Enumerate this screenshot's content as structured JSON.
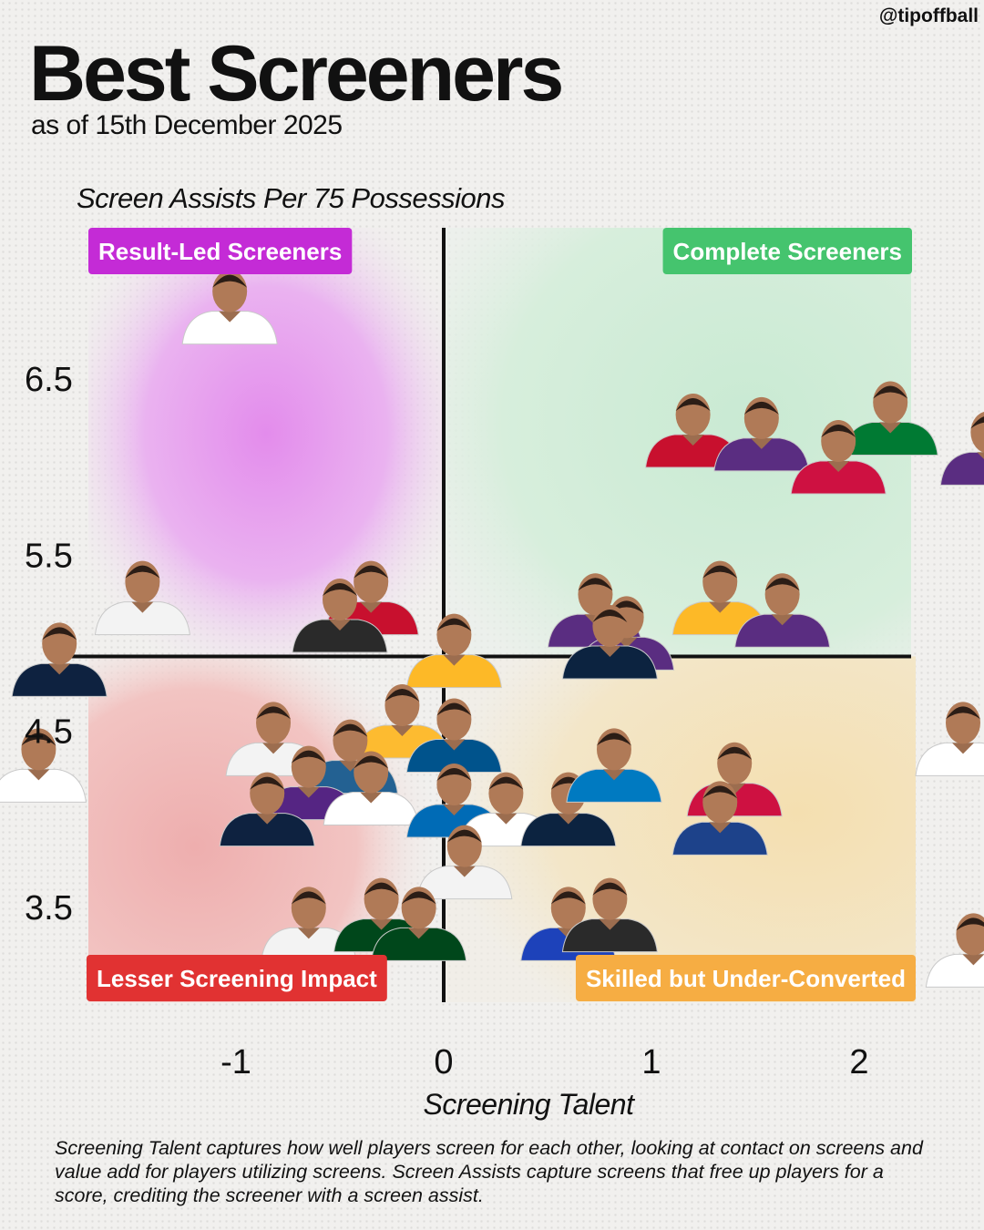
{
  "handle": "@tipoffball",
  "chart_data": {
    "type": "scatter",
    "title": "Best Screeners",
    "subtitle": "as of 15th December 2025",
    "xlabel": "Screening Talent",
    "ylabel": "Screen Assists Per 75 Possessions",
    "xlim": [
      -2.05,
      2.65
    ],
    "ylim": [
      3.0,
      7.6
    ],
    "x_origin": 0,
    "y_origin": 4.92,
    "x_ticks": [
      {
        "value": -1,
        "label": "-1"
      },
      {
        "value": 0,
        "label": "0"
      },
      {
        "value": 1,
        "label": "1"
      },
      {
        "value": 2,
        "label": "2"
      }
    ],
    "y_ticks": [
      {
        "value": 6.5,
        "label": "6.5"
      },
      {
        "value": 5.5,
        "label": "5.5"
      },
      {
        "value": 4.5,
        "label": "4.5"
      },
      {
        "value": 3.5,
        "label": "3.5"
      }
    ],
    "grid": false,
    "legend": "none",
    "quadrants": [
      {
        "label": "Result-Led Screeners",
        "position": "top-left",
        "color": "#c42bd6"
      },
      {
        "label": "Complete Screeners",
        "position": "top-right",
        "color": "#45c46e"
      },
      {
        "label": "Lesser Screening Impact",
        "position": "bottom-left",
        "color": "#e13232"
      },
      {
        "label": "Skilled but Under-Converted",
        "position": "bottom-right",
        "color": "#f6ad43"
      }
    ],
    "points": [
      {
        "x": -1.03,
        "y": 6.9,
        "jersey": "#ffffff"
      },
      {
        "x": 1.2,
        "y": 6.2,
        "jersey": "#c8102e"
      },
      {
        "x": 1.53,
        "y": 6.18,
        "jersey": "#5a2d81"
      },
      {
        "x": 2.15,
        "y": 6.27,
        "jersey": "#007a33"
      },
      {
        "x": 1.9,
        "y": 6.05,
        "jersey": "#ce1141"
      },
      {
        "x": 2.62,
        "y": 6.1,
        "jersey": "#5a2d81"
      },
      {
        "x": -1.45,
        "y": 5.25,
        "jersey": "#f3f3f3"
      },
      {
        "x": -0.35,
        "y": 5.25,
        "jersey": "#c8102e"
      },
      {
        "x": -0.5,
        "y": 5.15,
        "jersey": "#2a2a2a"
      },
      {
        "x": 0.73,
        "y": 5.18,
        "jersey": "#5a2d81"
      },
      {
        "x": 0.88,
        "y": 5.05,
        "jersey": "#5a2d81"
      },
      {
        "x": 1.33,
        "y": 5.25,
        "jersey": "#fdb927"
      },
      {
        "x": 1.63,
        "y": 5.18,
        "jersey": "#5a2d81"
      },
      {
        "x": 0.8,
        "y": 5.0,
        "jersey": "#0c2340"
      },
      {
        "x": 0.05,
        "y": 4.95,
        "jersey": "#fdb927"
      },
      {
        "x": -1.85,
        "y": 4.9,
        "jersey": "#0e2240"
      },
      {
        "x": -0.82,
        "y": 4.45,
        "jersey": "#f3f3f3"
      },
      {
        "x": -1.95,
        "y": 4.3,
        "jersey": "#ffffff"
      },
      {
        "x": -0.2,
        "y": 4.55,
        "jersey": "#fdbb30"
      },
      {
        "x": 0.05,
        "y": 4.47,
        "jersey": "#00538c"
      },
      {
        "x": -0.45,
        "y": 4.35,
        "jersey": "#236192"
      },
      {
        "x": -0.65,
        "y": 4.2,
        "jersey": "#552583"
      },
      {
        "x": -0.35,
        "y": 4.17,
        "jersey": "#ffffff"
      },
      {
        "x": -0.85,
        "y": 4.05,
        "jersey": "#0e2240"
      },
      {
        "x": 0.05,
        "y": 4.1,
        "jersey": "#006bb6"
      },
      {
        "x": 0.3,
        "y": 4.05,
        "jersey": "#ffffff"
      },
      {
        "x": 0.6,
        "y": 4.05,
        "jersey": "#0c2340"
      },
      {
        "x": 0.82,
        "y": 4.3,
        "jersey": "#007ac1"
      },
      {
        "x": 1.4,
        "y": 4.22,
        "jersey": "#ce1141"
      },
      {
        "x": 1.33,
        "y": 4.0,
        "jersey": "#1d428a"
      },
      {
        "x": 2.5,
        "y": 4.45,
        "jersey": "#ffffff"
      },
      {
        "x": 0.1,
        "y": 3.75,
        "jersey": "#f3f3f3"
      },
      {
        "x": -0.65,
        "y": 3.4,
        "jersey": "#f3f3f3"
      },
      {
        "x": -0.3,
        "y": 3.45,
        "jersey": "#00471b"
      },
      {
        "x": -0.12,
        "y": 3.4,
        "jersey": "#00471b"
      },
      {
        "x": 0.6,
        "y": 3.4,
        "jersey": "#1d42ba"
      },
      {
        "x": 0.8,
        "y": 3.45,
        "jersey": "#2a2a2a"
      },
      {
        "x": 2.55,
        "y": 3.25,
        "jersey": "#ffffff"
      }
    ]
  }
}
